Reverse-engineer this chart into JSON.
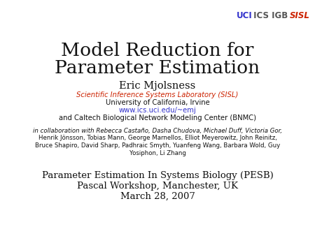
{
  "bg_color": "#ffffff",
  "title_line1": "Model Reduction for",
  "title_line2": "Parameter Estimation",
  "author": "Eric Mjolsness",
  "lab_italic": "Scientific Inference Systems Laboratory (SISL)",
  "lab_italic_color": "#cc2200",
  "university": "University of California, Irvine",
  "url": "www.ics.uci.edu/~emj",
  "url_color": "#3333cc",
  "caltech": "and Caltech Biological Network Modeling Center (BNMC)",
  "collab_italic": "in collaboration with ",
  "collab_rest": "Rebecca Castaño, Dasha Chudova, Michael Duff, Victoria Gor,",
  "collab2": "Henrik Jönsson, Tobias Mann, George Marnellos, Elliot Meyerowitz, John Reinitz,",
  "collab3": "Bruce Shapiro, David Sharp, Padhraic Smyth, Yuanfeng Wang, Barbara Wold, Guy",
  "collab4": "Yosiphon, Li Zhang",
  "bottom1": "Parameter Estimation In Systems Biology (PESB)",
  "bottom2": "Pascal Workshop, Manchester, UK",
  "bottom3": "March 28, 2007",
  "header_uci": "UCI",
  "header_uci_color": "#3333cc",
  "header_ics_igb": " ICS IGB ",
  "header_ics_color": "#555555",
  "header_sisl": "SISL",
  "header_sisl_color": "#cc2200"
}
